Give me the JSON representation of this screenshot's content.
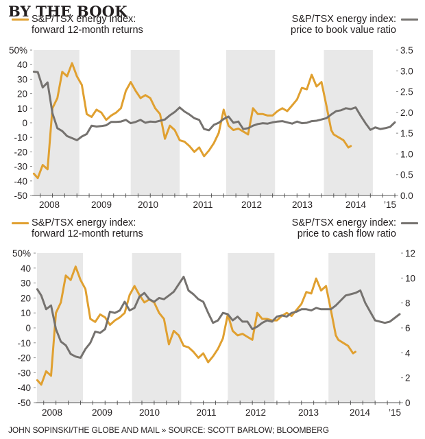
{
  "title": "BY THE BOOK",
  "footer": "JOHN SOPINSKI/THE GLOBE AND MAIL » SOURCE: SCOTT BARLOW; BLOOMBERG",
  "colors": {
    "returns": "#e0a030",
    "ratio": "#75726f",
    "shade": "#e8e8e8",
    "axis": "#555555"
  },
  "chart_data": [
    {
      "type": "line",
      "title": "",
      "legend_left": {
        "line1": "S&P/TSX energy index:",
        "line2": "forward 12-month returns"
      },
      "legend_right": {
        "line1": "S&P/TSX energy index:",
        "line2": "price to book value ratio"
      },
      "x_ticks": [
        "2008",
        "2009",
        "2010",
        "2011",
        "2012",
        "2013",
        "2014",
        "’15"
      ],
      "x_range": [
        2007.6,
        2015.0
      ],
      "y_left": {
        "label": "",
        "ticks": [
          "50%",
          "40",
          "30",
          "20",
          "10",
          "0",
          "-10",
          "-20",
          "-30",
          "-40",
          "-50"
        ],
        "range": [
          -50,
          50
        ]
      },
      "y_right": {
        "label": "",
        "ticks": [
          "3.5",
          "3.0",
          "2.5",
          "2.0",
          "1.5",
          "1.0",
          "0.5",
          "0.0"
        ],
        "range": [
          0,
          3.5
        ]
      },
      "shaded_periods": [
        [
          2007.6,
          2008.55
        ],
        [
          2009.6,
          2010.6
        ],
        [
          2011.55,
          2012.55
        ],
        [
          2013.55,
          2014.55
        ]
      ],
      "series": [
        {
          "name": "forward 12-month returns",
          "axis": "left",
          "x": [
            2007.62,
            2007.7,
            2007.8,
            2007.9,
            2008.0,
            2008.1,
            2008.2,
            2008.3,
            2008.4,
            2008.5,
            2008.6,
            2008.7,
            2008.8,
            2008.9,
            2009.0,
            2009.1,
            2009.2,
            2009.3,
            2009.4,
            2009.5,
            2009.6,
            2009.7,
            2009.8,
            2009.9,
            2010.0,
            2010.1,
            2010.2,
            2010.3,
            2010.4,
            2010.5,
            2010.6,
            2010.7,
            2010.8,
            2010.9,
            2011.0,
            2011.1,
            2011.2,
            2011.3,
            2011.4,
            2011.5,
            2011.6,
            2011.7,
            2011.8,
            2011.9,
            2012.0,
            2012.1,
            2012.2,
            2012.3,
            2012.4,
            2012.5,
            2012.6,
            2012.7,
            2012.8,
            2012.9,
            2013.0,
            2013.1,
            2013.2,
            2013.3,
            2013.4,
            2013.5,
            2013.6,
            2013.7
          ],
          "values": [
            -35,
            -38,
            -29,
            -32,
            10,
            17,
            35,
            32,
            41,
            32,
            26,
            6,
            4,
            9,
            7,
            2,
            5,
            7,
            10,
            22,
            28,
            22,
            17,
            19,
            17,
            10,
            6,
            -11,
            -2,
            -5,
            -12,
            -13,
            -16,
            -20,
            -17,
            -23,
            -19,
            -14,
            -7,
            9,
            -2,
            -5,
            -4,
            -6,
            -8,
            10,
            6,
            6,
            5,
            5,
            8,
            10,
            8,
            12,
            16,
            24,
            23,
            33,
            25,
            28,
            12,
            -5
          ],
          "tail_x": [
            2013.75,
            2013.85,
            2013.95,
            2014.05,
            2014.1
          ],
          "tail_values": [
            -8,
            -10,
            -12,
            -17,
            -16
          ]
        },
        {
          "name": "price to book value ratio",
          "axis": "right",
          "x": [
            2007.62,
            2007.7,
            2007.8,
            2007.9,
            2008.0,
            2008.1,
            2008.2,
            2008.3,
            2008.4,
            2008.5,
            2008.6,
            2008.7,
            2008.8,
            2008.9,
            2009.0,
            2009.1,
            2009.2,
            2009.3,
            2009.4,
            2009.5,
            2009.6,
            2009.7,
            2009.8,
            2009.9,
            2010.0,
            2010.1,
            2010.2,
            2010.3,
            2010.4,
            2010.5,
            2010.6,
            2010.7,
            2010.8,
            2010.9,
            2011.0,
            2011.1,
            2011.2,
            2011.3,
            2011.4,
            2011.5,
            2011.6,
            2011.7,
            2011.8,
            2011.9,
            2012.0,
            2012.1,
            2012.2,
            2012.3,
            2012.4,
            2012.5,
            2012.6,
            2012.7,
            2012.8,
            2012.9,
            2013.0,
            2013.1,
            2013.2,
            2013.3,
            2013.4,
            2013.5,
            2013.6,
            2013.7,
            2013.8,
            2013.9,
            2014.0,
            2014.1,
            2014.2,
            2014.3,
            2014.4,
            2014.5,
            2014.6,
            2014.7,
            2014.8,
            2014.9,
            2015.0
          ],
          "values": [
            2.98,
            2.97,
            2.6,
            2.72,
            1.98,
            1.62,
            1.55,
            1.43,
            1.38,
            1.33,
            1.42,
            1.48,
            1.68,
            1.66,
            1.67,
            1.69,
            1.77,
            1.77,
            1.78,
            1.82,
            1.74,
            1.77,
            1.82,
            1.75,
            1.78,
            1.77,
            1.8,
            1.83,
            1.93,
            2.01,
            2.12,
            2.02,
            1.95,
            1.86,
            1.82,
            1.6,
            1.57,
            1.7,
            1.75,
            1.84,
            1.9,
            1.75,
            1.78,
            1.6,
            1.62,
            1.68,
            1.72,
            1.74,
            1.73,
            1.76,
            1.78,
            1.79,
            1.76,
            1.73,
            1.78,
            1.74,
            1.75,
            1.79,
            1.8,
            1.83,
            1.86,
            1.95,
            2.03,
            2.05,
            2.1,
            2.08,
            2.12,
            1.92,
            1.74,
            1.58,
            1.64,
            1.6,
            1.62,
            1.65,
            1.76
          ]
        }
      ]
    },
    {
      "type": "line",
      "title": "",
      "legend_left": {
        "line1": "S&P/TSX energy index:",
        "line2": "forward 12-month returns"
      },
      "legend_right": {
        "line1": "S&P/TSX energy index:",
        "line2": "price to cash flow ratio"
      },
      "x_ticks": [
        "2008",
        "2009",
        "2010",
        "2011",
        "2012",
        "2013",
        "2014",
        "’15"
      ],
      "x_range": [
        2007.6,
        2015.0
      ],
      "y_left": {
        "label": "",
        "ticks": [
          "50%",
          "40",
          "30",
          "20",
          "10",
          "0",
          "-10",
          "-20",
          "-30",
          "-40",
          "-50"
        ],
        "range": [
          -50,
          50
        ]
      },
      "y_right": {
        "label": "",
        "ticks": [
          "12",
          "10",
          "8",
          "6",
          "4",
          "2",
          "0"
        ],
        "range": [
          0,
          12
        ]
      },
      "shaded_periods": [
        [
          2007.6,
          2008.55
        ],
        [
          2009.55,
          2010.55
        ],
        [
          2011.5,
          2012.45
        ],
        [
          2013.55,
          2014.5
        ]
      ],
      "series": [
        {
          "name": "forward 12-month returns",
          "axis": "left",
          "x": [
            2007.62,
            2007.7,
            2007.8,
            2007.9,
            2008.0,
            2008.1,
            2008.2,
            2008.3,
            2008.4,
            2008.5,
            2008.6,
            2008.7,
            2008.8,
            2008.9,
            2009.0,
            2009.1,
            2009.2,
            2009.3,
            2009.4,
            2009.5,
            2009.6,
            2009.7,
            2009.8,
            2009.9,
            2010.0,
            2010.1,
            2010.2,
            2010.3,
            2010.4,
            2010.5,
            2010.6,
            2010.7,
            2010.8,
            2010.9,
            2011.0,
            2011.1,
            2011.2,
            2011.3,
            2011.4,
            2011.5,
            2011.6,
            2011.7,
            2011.8,
            2011.9,
            2012.0,
            2012.1,
            2012.2,
            2012.3,
            2012.4,
            2012.5,
            2012.6,
            2012.7,
            2012.8,
            2012.9,
            2013.0,
            2013.1,
            2013.2,
            2013.3,
            2013.4,
            2013.5,
            2013.6,
            2013.7
          ],
          "values": [
            -35,
            -38,
            -29,
            -32,
            10,
            17,
            35,
            32,
            41,
            32,
            26,
            6,
            4,
            9,
            7,
            2,
            5,
            7,
            10,
            22,
            28,
            22,
            17,
            19,
            17,
            10,
            6,
            -11,
            -2,
            -5,
            -12,
            -13,
            -16,
            -20,
            -17,
            -23,
            -19,
            -14,
            -7,
            9,
            -2,
            -5,
            -4,
            -6,
            -8,
            10,
            6,
            6,
            5,
            5,
            8,
            10,
            8,
            12,
            16,
            24,
            23,
            33,
            25,
            28,
            12,
            -5
          ],
          "tail_x": [
            2013.75,
            2013.85,
            2013.95,
            2014.05,
            2014.1
          ],
          "tail_values": [
            -8,
            -10,
            -12,
            -17,
            -16
          ]
        },
        {
          "name": "price to cash flow ratio",
          "axis": "right",
          "x": [
            2007.62,
            2007.7,
            2007.8,
            2007.9,
            2008.0,
            2008.1,
            2008.2,
            2008.3,
            2008.4,
            2008.5,
            2008.6,
            2008.7,
            2008.8,
            2008.9,
            2009.0,
            2009.1,
            2009.2,
            2009.3,
            2009.4,
            2009.5,
            2009.6,
            2009.7,
            2009.8,
            2009.9,
            2010.0,
            2010.1,
            2010.2,
            2010.3,
            2010.4,
            2010.5,
            2010.6,
            2010.7,
            2010.8,
            2010.9,
            2011.0,
            2011.1,
            2011.2,
            2011.3,
            2011.4,
            2011.5,
            2011.6,
            2011.7,
            2011.8,
            2011.9,
            2012.0,
            2012.1,
            2012.2,
            2012.3,
            2012.4,
            2012.5,
            2012.6,
            2012.7,
            2012.8,
            2012.9,
            2013.0,
            2013.1,
            2013.2,
            2013.3,
            2013.4,
            2013.5,
            2013.6,
            2013.7,
            2013.8,
            2013.9,
            2014.0,
            2014.1,
            2014.2,
            2014.3,
            2014.4,
            2014.5,
            2014.6,
            2014.7,
            2014.8,
            2014.9,
            2015.0
          ],
          "values": [
            9.1,
            8.6,
            7.5,
            7.8,
            5.9,
            4.9,
            4.6,
            3.9,
            3.7,
            3.6,
            4.3,
            4.8,
            5.7,
            5.6,
            5.9,
            7.3,
            7.2,
            7.4,
            8.1,
            7.4,
            7.6,
            8.5,
            8.8,
            8.3,
            8.1,
            8.4,
            8.3,
            8.6,
            8.9,
            9.5,
            10.1,
            9.0,
            8.7,
            8.3,
            8.1,
            7.2,
            6.4,
            6.6,
            7.2,
            7.1,
            6.6,
            6.9,
            6.5,
            6.5,
            5.9,
            6.1,
            6.4,
            6.6,
            6.5,
            6.9,
            7.0,
            6.9,
            7.2,
            7.3,
            7.5,
            7.5,
            7.4,
            7.6,
            7.5,
            7.5,
            7.5,
            7.8,
            8.2,
            8.6,
            8.7,
            8.8,
            9.0,
            8.0,
            7.3,
            6.6,
            6.5,
            6.4,
            6.5,
            6.8,
            7.1
          ]
        }
      ]
    }
  ]
}
